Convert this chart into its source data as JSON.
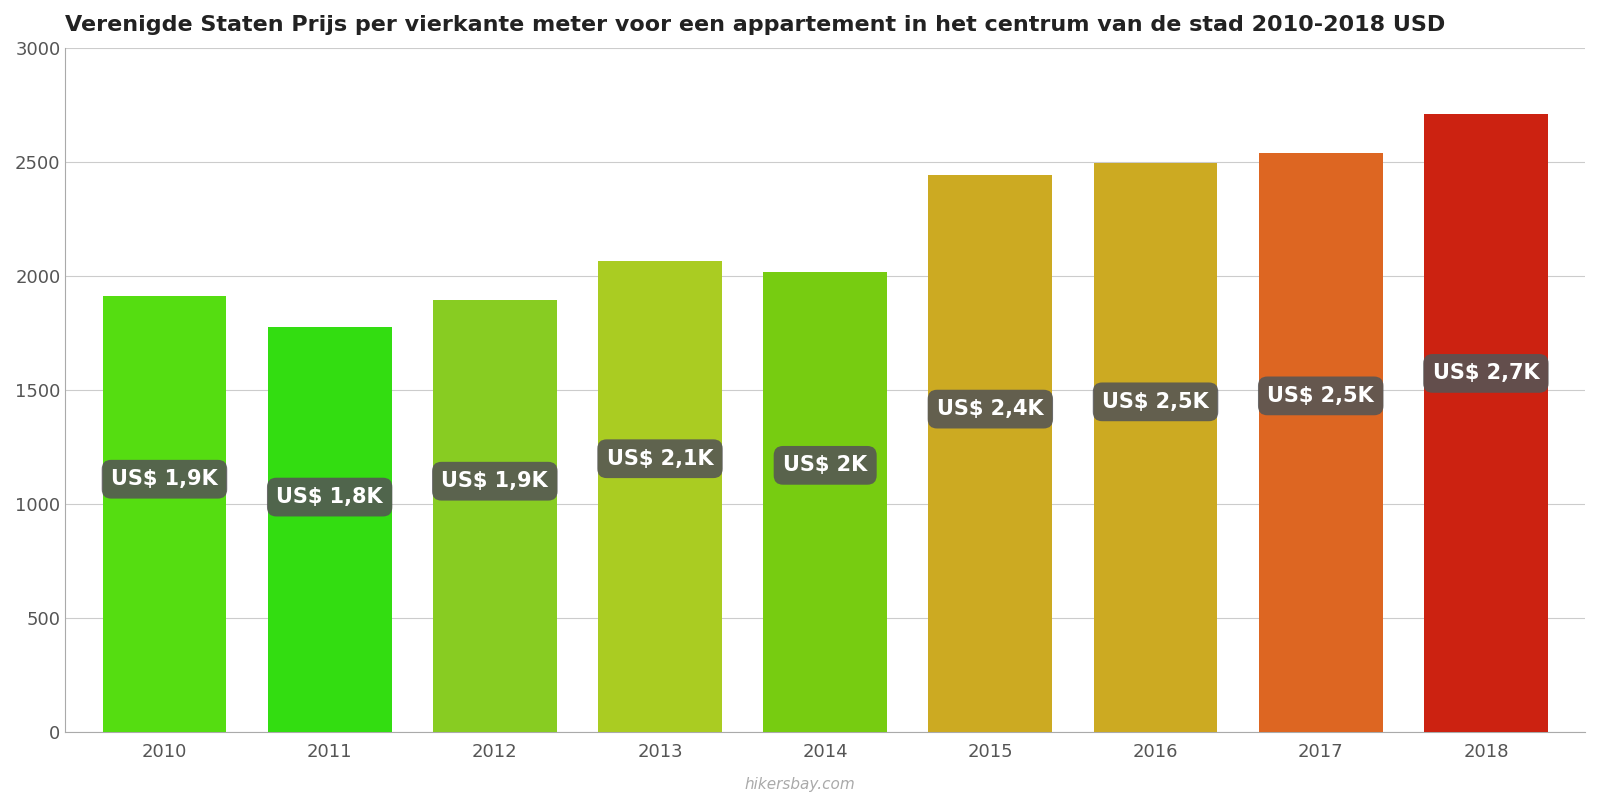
{
  "title": "Verenigde Staten Prijs per vierkante meter voor een appartement in het centrum van de stad 2010-2018 USD",
  "years": [
    2010,
    2011,
    2012,
    2013,
    2014,
    2015,
    2016,
    2017,
    2018
  ],
  "values": [
    1910,
    1775,
    1895,
    2065,
    2015,
    2440,
    2495,
    2540,
    2710
  ],
  "labels": [
    "US$ 1,9K",
    "US$ 1,8K",
    "US$ 1,9K",
    "US$ 2,1K",
    "US$ 2K",
    "US$ 2,4K",
    "US$ 2,5K",
    "US$ 2,5K",
    "US$ 2,7K"
  ],
  "bar_colors": [
    "#55dd11",
    "#33dd11",
    "#88cc22",
    "#aacc22",
    "#77cc11",
    "#ccaa22",
    "#ccaa22",
    "#dd6622",
    "#cc2211"
  ],
  "background_color": "#ffffff",
  "label_bg_color": "#555555",
  "label_text_color": "#ffffff",
  "ylim": [
    0,
    3000
  ],
  "yticks": [
    0,
    500,
    1000,
    1500,
    2000,
    2500,
    3000
  ],
  "watermark": "hikersbay.com",
  "title_fontsize": 16,
  "tick_fontsize": 13,
  "label_fontsize": 15
}
